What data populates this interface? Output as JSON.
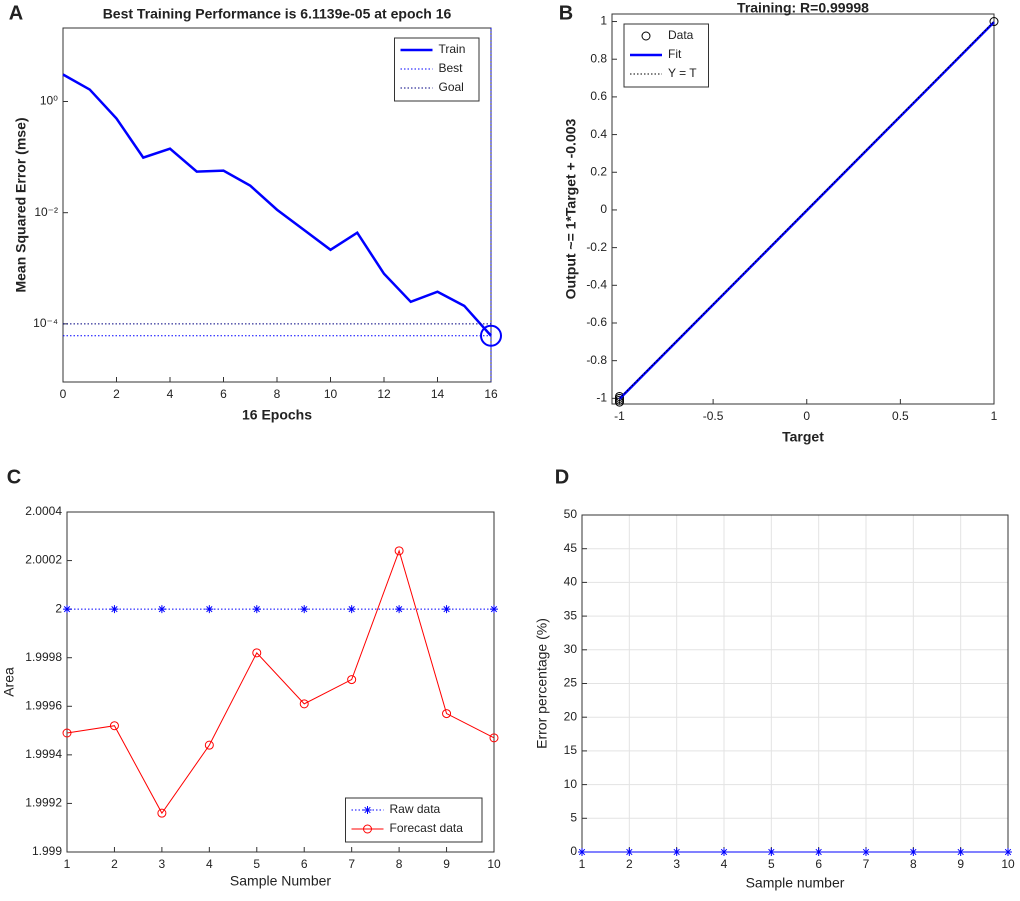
{
  "chart_data": [
    {
      "panel": "A",
      "type": "line",
      "title": "Best Training Performance is 6.1139e-05 at epoch 16",
      "xlabel": "16 Epochs",
      "ylabel": "Mean Squared Error  (mse)",
      "x": [
        0,
        1,
        2,
        3,
        4,
        5,
        6,
        7,
        8,
        9,
        10,
        11,
        12,
        13,
        14,
        15,
        16
      ],
      "xlim": [
        0,
        16
      ],
      "xticks": [
        0,
        2,
        4,
        6,
        8,
        10,
        12,
        14,
        16
      ],
      "yscale": "log",
      "ylim": [
        9e-06,
        21
      ],
      "yticks": [
        {
          "value": 0.0001,
          "label": "10⁻⁴"
        },
        {
          "value": 0.01,
          "label": "10⁻²"
        },
        {
          "value": 1,
          "label": "10⁰"
        }
      ],
      "legend": "upper right",
      "series": [
        {
          "name": "Train",
          "color": "#0000ff",
          "style": "solid",
          "values": [
            3.06,
            1.64,
            0.494,
            0.098,
            0.142,
            0.0548,
            0.0571,
            0.0306,
            0.0113,
            0.00494,
            0.00215,
            0.00436,
            0.000796,
            0.000249,
            0.000378,
            0.000211,
            6.1139e-05
          ]
        },
        {
          "name": "Best",
          "color": "#0000ff",
          "style": "dotted",
          "x": 16,
          "value": 6.1139e-05
        },
        {
          "name": "Goal",
          "color": "#000080",
          "style": "dotted",
          "value": 0.0001
        }
      ]
    },
    {
      "panel": "B",
      "type": "regression",
      "title": "Training: R=0.99998",
      "xlabel": "Target",
      "ylabel": "Output ~= 1*Target + -0.003",
      "xlim": [
        -1.04,
        1
      ],
      "xticks": [
        -1,
        -0.5,
        0,
        0.5,
        1
      ],
      "ylim": [
        -1.03,
        1.04
      ],
      "yticks": [
        -1,
        -0.8,
        -0.6,
        -0.4,
        -0.2,
        0,
        0.2,
        0.4,
        0.6,
        0.8,
        1
      ],
      "legend": "upper left",
      "series": [
        {
          "name": "Data",
          "type": "scatter",
          "color": "#000000",
          "marker": "circle",
          "x": [
            -1,
            -1,
            -1,
            -1,
            1
          ],
          "values": [
            -0.99,
            -1.0,
            -1.01,
            -1.02,
            1.0
          ]
        },
        {
          "name": "Fit",
          "color": "#0000ff",
          "style": "solid",
          "x": [
            -1,
            1
          ],
          "values": [
            -1.003,
            0.997
          ]
        },
        {
          "name": "Y = T",
          "color": "#000000",
          "style": "dotted",
          "x": [
            -1,
            1
          ],
          "values": [
            -1,
            1
          ]
        }
      ]
    },
    {
      "panel": "C",
      "type": "line",
      "xlabel": "Sample Number",
      "ylabel": "Area",
      "x": [
        1,
        2,
        3,
        4,
        5,
        6,
        7,
        8,
        9,
        10
      ],
      "xlim": [
        1,
        10
      ],
      "xticks": [
        1,
        2,
        3,
        4,
        5,
        6,
        7,
        8,
        9,
        10
      ],
      "ylim": [
        1.999,
        2.0004
      ],
      "yticks": [
        1.999,
        1.9992,
        1.9994,
        1.9996,
        1.9998,
        2,
        2.0002,
        2.0004
      ],
      "legend": "lower right",
      "series": [
        {
          "name": "Raw data",
          "color": "#0000ff",
          "style": "dotted",
          "marker": "star",
          "values": [
            2,
            2,
            2,
            2,
            2,
            2,
            2,
            2,
            2,
            2
          ]
        },
        {
          "name": "Forecast data",
          "color": "#ff0000",
          "style": "solid",
          "marker": "circle",
          "values": [
            1.99949,
            1.99952,
            1.99916,
            1.99944,
            1.99982,
            1.99961,
            1.99971,
            2.00024,
            1.99957,
            1.99947
          ]
        }
      ]
    },
    {
      "panel": "D",
      "type": "line",
      "xlabel": "Sample number",
      "ylabel": "Error percentage (%)",
      "x": [
        1,
        2,
        3,
        4,
        5,
        6,
        7,
        8,
        9,
        10
      ],
      "xlim": [
        1,
        10
      ],
      "xticks": [
        1,
        2,
        3,
        4,
        5,
        6,
        7,
        8,
        9,
        10
      ],
      "ylim": [
        0,
        50
      ],
      "yticks": [
        0,
        5,
        10,
        15,
        20,
        25,
        30,
        35,
        40,
        45,
        50
      ],
      "grid": true,
      "series": [
        {
          "color": "#0000ff",
          "style": "solid",
          "marker": "star",
          "values": [
            0,
            0,
            0,
            0,
            0,
            0,
            0,
            0,
            0,
            0
          ]
        }
      ]
    }
  ]
}
